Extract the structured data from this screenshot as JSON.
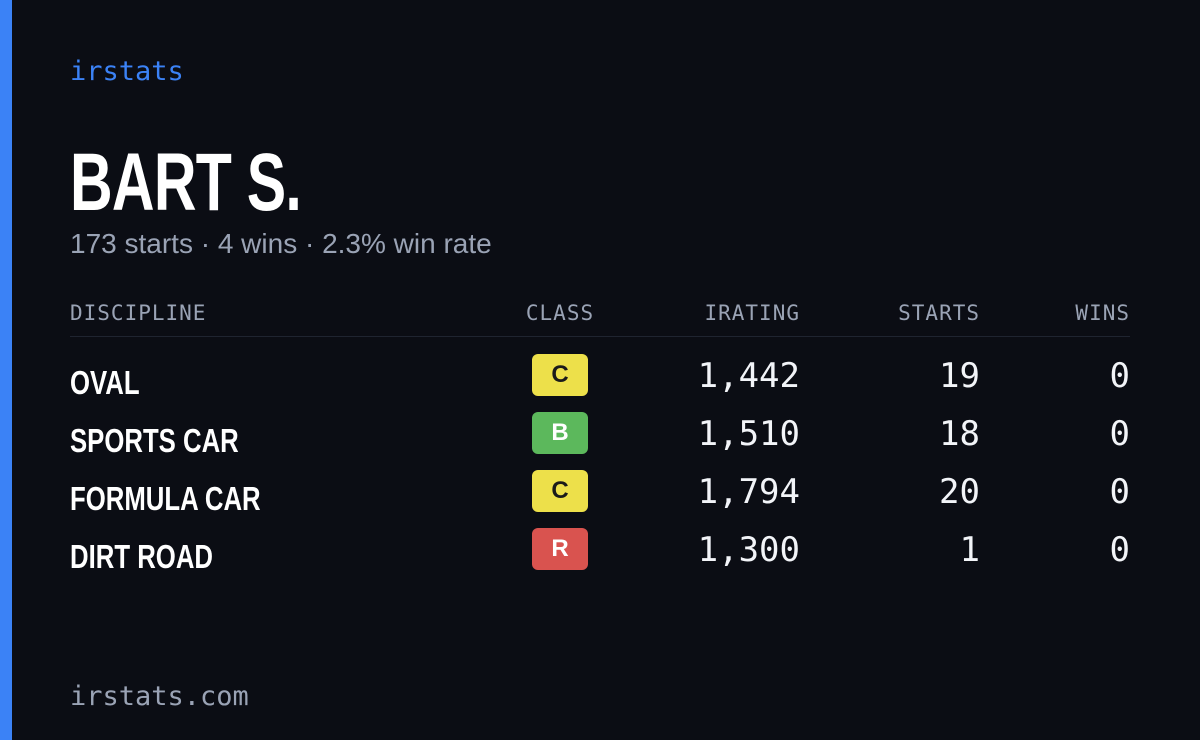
{
  "brand": "irstats",
  "name": "BART S.",
  "summary": "173 starts · 4 wins · 2.3% win rate",
  "table": {
    "headers": [
      "DISCIPLINE",
      "CLASS",
      "IRATING",
      "STARTS",
      "WINS"
    ],
    "rows": [
      [
        "OVAL",
        "C",
        "1,442",
        "19",
        "0"
      ],
      [
        "SPORTS CAR",
        "B",
        "1,510",
        "18",
        "0"
      ],
      [
        "FORMULA CAR",
        "C",
        "1,794",
        "20",
        "0"
      ],
      [
        "DIRT ROAD",
        "R",
        "1,300",
        "1",
        "0"
      ]
    ]
  },
  "footer": "irstats.com"
}
